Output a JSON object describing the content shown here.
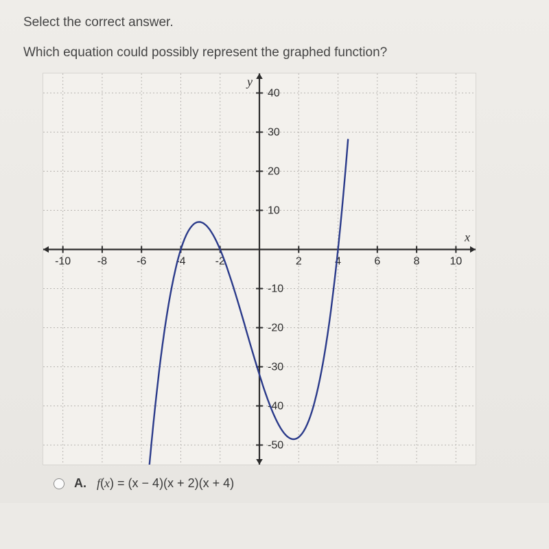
{
  "heading": "Select the correct answer.",
  "prompt": "Which equation could possibly represent the graphed function?",
  "chart": {
    "type": "line",
    "background_color": "#f3f1ed",
    "grid_color": "#b7b4b0",
    "axis_color": "#2b2b2b",
    "curve_color": "#2a3a8a",
    "x_axis_label": "x",
    "y_axis_label": "y",
    "xlim": [
      -11,
      11
    ],
    "ylim": [
      -55,
      45
    ],
    "xtick_step": 2,
    "ytick_step": 10,
    "xtick_labels": [
      "-10",
      "-8",
      "-6",
      "-4",
      "-2",
      "",
      "2",
      "4",
      "6",
      "8",
      "10"
    ],
    "xtick_values": [
      -10,
      -8,
      -6,
      -4,
      -2,
      0,
      2,
      4,
      6,
      8,
      10
    ],
    "ytick_labels": [
      "40",
      "30",
      "20",
      "10",
      "",
      "-10",
      "-20",
      "-30",
      "-40",
      "-50"
    ],
    "ytick_values": [
      40,
      30,
      20,
      10,
      0,
      -10,
      -20,
      -30,
      -40,
      -50
    ],
    "grid_dash": "2 3",
    "curve_width": 2.4,
    "axis_width": 2.2,
    "arrow_size": 8,
    "function_roots": [
      -4,
      -2,
      4
    ],
    "function_coeff": 1.0,
    "sample_x_start": -5.65,
    "sample_x_end": 4.55,
    "sample_x_step": 0.08
  },
  "answers": [
    {
      "letter": "A.",
      "fnletter": "f",
      "var": "x",
      "body": " = (x − 4)(x + 2)(x + 4)"
    }
  ]
}
